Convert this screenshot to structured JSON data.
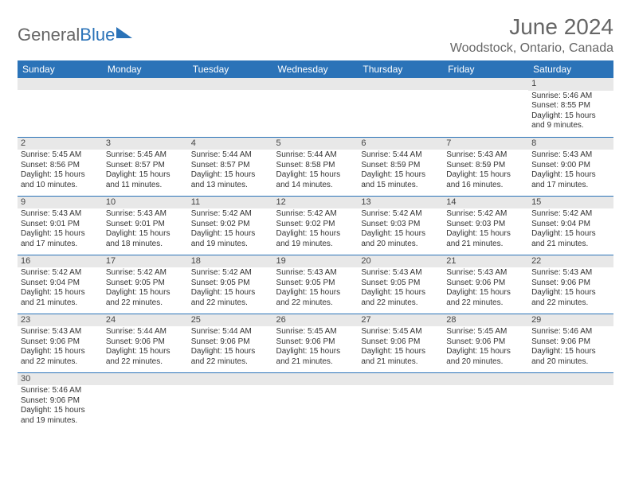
{
  "logo": {
    "text1": "General",
    "text2": "Blue"
  },
  "title": "June 2024",
  "location": "Woodstock, Ontario, Canada",
  "colors": {
    "header_bg": "#2b73b8",
    "header_text": "#ffffff",
    "daynum_bg": "#e8e8e8",
    "rule": "#2b73b8",
    "text": "#333333",
    "title_text": "#666666"
  },
  "weekdays": [
    "Sunday",
    "Monday",
    "Tuesday",
    "Wednesday",
    "Thursday",
    "Friday",
    "Saturday"
  ],
  "labels": {
    "sunrise": "Sunrise:",
    "sunset": "Sunset:",
    "daylight": "Daylight:"
  },
  "first_weekday_index": 6,
  "days": [
    {
      "n": 1,
      "sunrise": "5:46 AM",
      "sunset": "8:55 PM",
      "daylight": "15 hours and 9 minutes."
    },
    {
      "n": 2,
      "sunrise": "5:45 AM",
      "sunset": "8:56 PM",
      "daylight": "15 hours and 10 minutes."
    },
    {
      "n": 3,
      "sunrise": "5:45 AM",
      "sunset": "8:57 PM",
      "daylight": "15 hours and 11 minutes."
    },
    {
      "n": 4,
      "sunrise": "5:44 AM",
      "sunset": "8:57 PM",
      "daylight": "15 hours and 13 minutes."
    },
    {
      "n": 5,
      "sunrise": "5:44 AM",
      "sunset": "8:58 PM",
      "daylight": "15 hours and 14 minutes."
    },
    {
      "n": 6,
      "sunrise": "5:44 AM",
      "sunset": "8:59 PM",
      "daylight": "15 hours and 15 minutes."
    },
    {
      "n": 7,
      "sunrise": "5:43 AM",
      "sunset": "8:59 PM",
      "daylight": "15 hours and 16 minutes."
    },
    {
      "n": 8,
      "sunrise": "5:43 AM",
      "sunset": "9:00 PM",
      "daylight": "15 hours and 17 minutes."
    },
    {
      "n": 9,
      "sunrise": "5:43 AM",
      "sunset": "9:01 PM",
      "daylight": "15 hours and 17 minutes."
    },
    {
      "n": 10,
      "sunrise": "5:43 AM",
      "sunset": "9:01 PM",
      "daylight": "15 hours and 18 minutes."
    },
    {
      "n": 11,
      "sunrise": "5:42 AM",
      "sunset": "9:02 PM",
      "daylight": "15 hours and 19 minutes."
    },
    {
      "n": 12,
      "sunrise": "5:42 AM",
      "sunset": "9:02 PM",
      "daylight": "15 hours and 19 minutes."
    },
    {
      "n": 13,
      "sunrise": "5:42 AM",
      "sunset": "9:03 PM",
      "daylight": "15 hours and 20 minutes."
    },
    {
      "n": 14,
      "sunrise": "5:42 AM",
      "sunset": "9:03 PM",
      "daylight": "15 hours and 21 minutes."
    },
    {
      "n": 15,
      "sunrise": "5:42 AM",
      "sunset": "9:04 PM",
      "daylight": "15 hours and 21 minutes."
    },
    {
      "n": 16,
      "sunrise": "5:42 AM",
      "sunset": "9:04 PM",
      "daylight": "15 hours and 21 minutes."
    },
    {
      "n": 17,
      "sunrise": "5:42 AM",
      "sunset": "9:05 PM",
      "daylight": "15 hours and 22 minutes."
    },
    {
      "n": 18,
      "sunrise": "5:42 AM",
      "sunset": "9:05 PM",
      "daylight": "15 hours and 22 minutes."
    },
    {
      "n": 19,
      "sunrise": "5:43 AM",
      "sunset": "9:05 PM",
      "daylight": "15 hours and 22 minutes."
    },
    {
      "n": 20,
      "sunrise": "5:43 AM",
      "sunset": "9:05 PM",
      "daylight": "15 hours and 22 minutes."
    },
    {
      "n": 21,
      "sunrise": "5:43 AM",
      "sunset": "9:06 PM",
      "daylight": "15 hours and 22 minutes."
    },
    {
      "n": 22,
      "sunrise": "5:43 AM",
      "sunset": "9:06 PM",
      "daylight": "15 hours and 22 minutes."
    },
    {
      "n": 23,
      "sunrise": "5:43 AM",
      "sunset": "9:06 PM",
      "daylight": "15 hours and 22 minutes."
    },
    {
      "n": 24,
      "sunrise": "5:44 AM",
      "sunset": "9:06 PM",
      "daylight": "15 hours and 22 minutes."
    },
    {
      "n": 25,
      "sunrise": "5:44 AM",
      "sunset": "9:06 PM",
      "daylight": "15 hours and 22 minutes."
    },
    {
      "n": 26,
      "sunrise": "5:45 AM",
      "sunset": "9:06 PM",
      "daylight": "15 hours and 21 minutes."
    },
    {
      "n": 27,
      "sunrise": "5:45 AM",
      "sunset": "9:06 PM",
      "daylight": "15 hours and 21 minutes."
    },
    {
      "n": 28,
      "sunrise": "5:45 AM",
      "sunset": "9:06 PM",
      "daylight": "15 hours and 20 minutes."
    },
    {
      "n": 29,
      "sunrise": "5:46 AM",
      "sunset": "9:06 PM",
      "daylight": "15 hours and 20 minutes."
    },
    {
      "n": 30,
      "sunrise": "5:46 AM",
      "sunset": "9:06 PM",
      "daylight": "15 hours and 19 minutes."
    }
  ]
}
